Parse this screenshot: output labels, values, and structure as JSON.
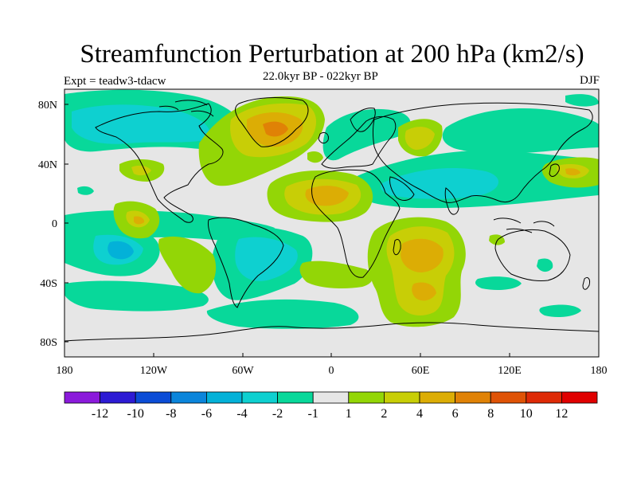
{
  "title": "Streamfunction Perturbation at 200 hPa (km2/s)",
  "left_label": "Expt = teadw3-tdacw",
  "center_label": "22.0kyr BP - 022kyr BP",
  "right_label": "DJF",
  "map": {
    "projection": "cylindrical equidistant",
    "lon_range": [
      -180,
      180
    ],
    "lat_range": [
      -90,
      90
    ],
    "background_color": "#e6e6e6",
    "x_tick_labels": [
      "180",
      "120W",
      "60W",
      "0",
      "60E",
      "120E",
      "180"
    ],
    "y_tick_labels": [
      "80N",
      "40N",
      "0",
      "40S",
      "80S"
    ]
  },
  "colorbar": {
    "labels": [
      "-12",
      "-10",
      "-8",
      "-6",
      "-4",
      "-2",
      "-1",
      "1",
      "2",
      "4",
      "6",
      "8",
      "10",
      "12"
    ],
    "colors": [
      "#8b1adb",
      "#2d1bd4",
      "#0b4cd6",
      "#0b85db",
      "#03b1d8",
      "#0ed0d0",
      "#08d89a",
      "#e6e6e6",
      "#93d606",
      "#c8ce06",
      "#dcad05",
      "#e08206",
      "#df5306",
      "#de2a06",
      "#e00000"
    ]
  }
}
